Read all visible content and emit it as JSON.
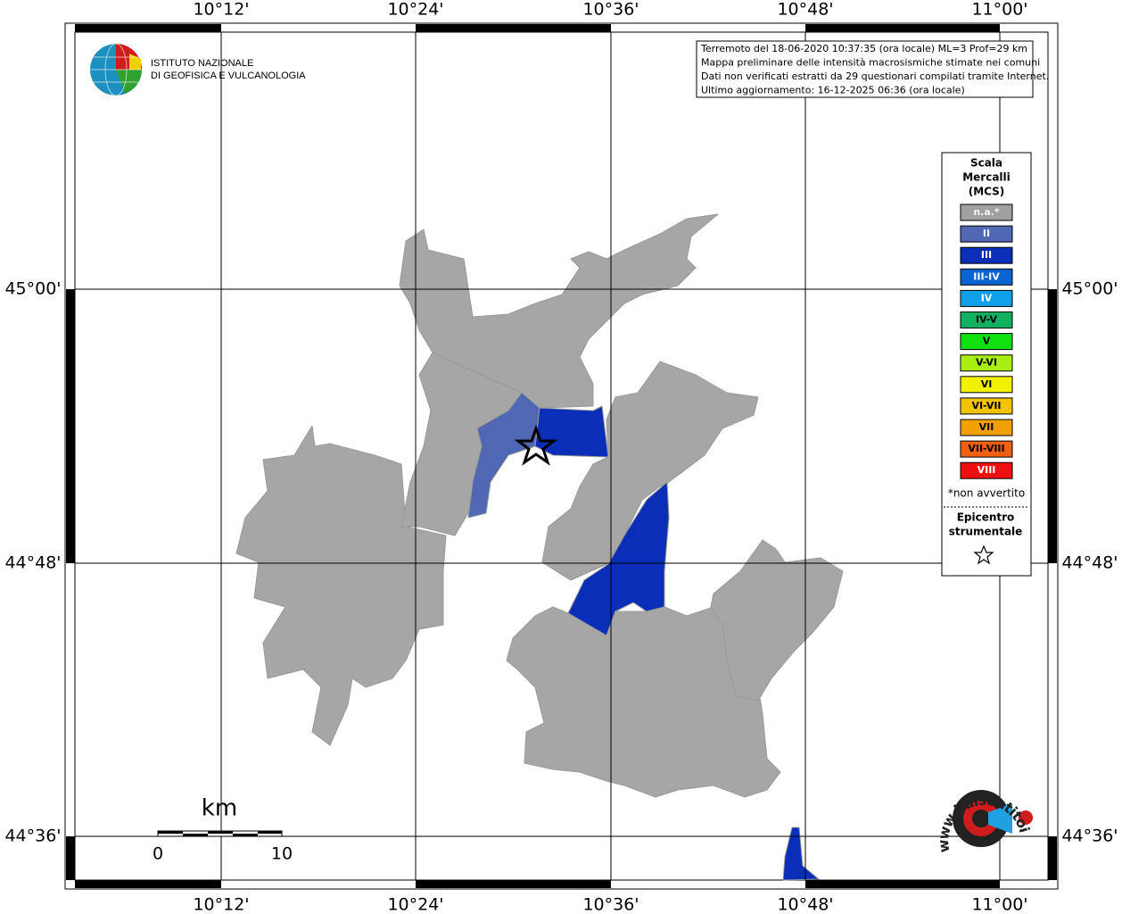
{
  "map": {
    "header_lines": [
      "Terremoto del 18-06-2020 10:37:35 (ora locale) ML=3 Prof=29 km",
      "Mappa preliminare delle intensità macrosismiche stimate nei comuni",
      "Dati non verificati estratti da 29 questionari compilati tramite Internet.",
      "Ultimo aggiornamento: 16-12-2025 06:36 (ora locale)"
    ],
    "logo": {
      "line1": "ISTITUTO NAZIONALE",
      "line2": "DI GEOFISICA E VULCANOLOGIA"
    },
    "lon_labels": [
      "10°12'",
      "10°24'",
      "10°36'",
      "10°48'",
      "11°00'"
    ],
    "lat_labels": [
      "45°00'",
      "44°48'",
      "44°36'"
    ],
    "legend": {
      "title": [
        "Scala",
        "Mercalli",
        "(MCS)"
      ],
      "items": [
        {
          "label": "n.a.*",
          "color": "#a0a0a0",
          "text_color": "#f2f2f2"
        },
        {
          "label": "II",
          "color": "#5068b4",
          "text_color": "#ffffff"
        },
        {
          "label": "III",
          "color": "#0a2eb8",
          "text_color": "#ffffff"
        },
        {
          "label": "III-IV",
          "color": "#0a64d0",
          "text_color": "#ffffff"
        },
        {
          "label": "IV",
          "color": "#10a0ea",
          "text_color": "#ffffff"
        },
        {
          "label": "IV-V",
          "color": "#10b060",
          "text_color": "#000000"
        },
        {
          "label": "V",
          "color": "#10e010",
          "text_color": "#000000"
        },
        {
          "label": "V-VI",
          "color": "#a8ee10",
          "text_color": "#000000"
        },
        {
          "label": "VI",
          "color": "#f2f200",
          "text_color": "#000000"
        },
        {
          "label": "VI-VII",
          "color": "#f2c400",
          "text_color": "#000000"
        },
        {
          "label": "VII",
          "color": "#f2a000",
          "text_color": "#000000"
        },
        {
          "label": "VII-VIII",
          "color": "#f06010",
          "text_color": "#000000"
        },
        {
          "label": "VIII",
          "color": "#ee1010",
          "text_color": "#ffffff"
        }
      ],
      "note": "*non avvertito",
      "epicenter": [
        "Epicentro",
        "strumentale"
      ]
    },
    "scale": {
      "unit": "km",
      "start": 0,
      "end": 10
    },
    "site_logo": "www.haisentitoilterremoto.it"
  }
}
